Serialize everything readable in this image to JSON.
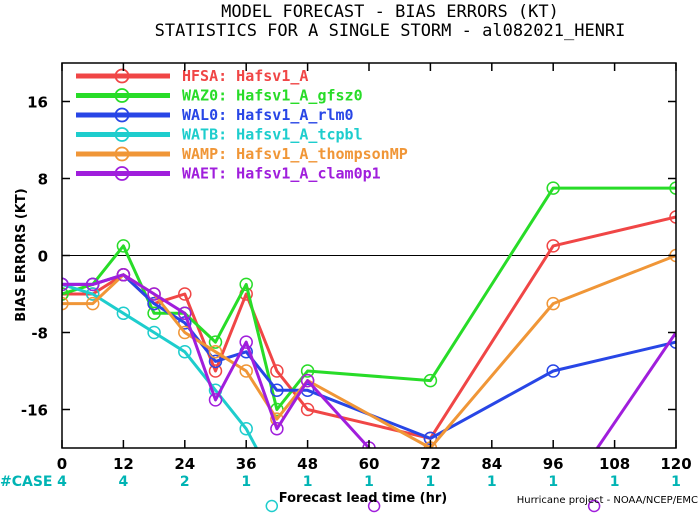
{
  "chart_data": {
    "type": "line",
    "title": "MODEL FORECAST - BIAS ERRORS (KT)",
    "subtitle": "STATISTICS FOR A SINGLE STORM - al082021_HENRI",
    "xlabel": "Forecast lead time (hr)",
    "ylabel": "BIAS ERRORS (KT)",
    "xlim": [
      0,
      120
    ],
    "ylim": [
      -20,
      20
    ],
    "x_ticks": [
      0,
      12,
      24,
      36,
      48,
      60,
      72,
      84,
      96,
      108,
      120
    ],
    "y_ticks": [
      16,
      8,
      0,
      -8,
      -16
    ],
    "grid": false,
    "legend_position": "top-left",
    "case_label": "#CASE",
    "cases": [
      {
        "x": 0,
        "label": "4"
      },
      {
        "x": 12,
        "label": "4"
      },
      {
        "x": 24,
        "label": "2"
      },
      {
        "x": 36,
        "label": "1"
      },
      {
        "x": 48,
        "label": "1"
      },
      {
        "x": 60,
        "label": "1"
      },
      {
        "x": 72,
        "label": "1"
      },
      {
        "x": 84,
        "label": "1"
      },
      {
        "x": 96,
        "label": "1"
      },
      {
        "x": 108,
        "label": "1"
      },
      {
        "x": 120,
        "label": "1"
      }
    ],
    "credit": "Hurricane project - NOAA/NCEP/EMC",
    "series": [
      {
        "name": "HFSA: Hafsv1_A",
        "color": "#f04646",
        "points": [
          [
            0,
            -4
          ],
          [
            6,
            -4
          ],
          [
            12,
            -2
          ],
          [
            18,
            -5
          ],
          [
            24,
            -4
          ],
          [
            30,
            -12
          ],
          [
            36,
            -4
          ],
          [
            42,
            -12
          ],
          [
            48,
            -16
          ],
          [
            72,
            -19
          ],
          [
            96,
            1
          ],
          [
            120,
            4
          ]
        ]
      },
      {
        "name": "WAZ0: Hafsv1_A_gfsz0",
        "color": "#28dc28",
        "points": [
          [
            0,
            -4
          ],
          [
            6,
            -3
          ],
          [
            12,
            1
          ],
          [
            18,
            -6
          ],
          [
            24,
            -6
          ],
          [
            30,
            -9
          ],
          [
            36,
            -3
          ],
          [
            42,
            -16
          ],
          [
            48,
            -12
          ],
          [
            72,
            -13
          ],
          [
            96,
            7
          ],
          [
            120,
            7
          ]
        ]
      },
      {
        "name": "WAL0: Hafsv1_A_rlm0",
        "color": "#2846e6",
        "points": [
          [
            0,
            -3
          ],
          [
            6,
            -3
          ],
          [
            12,
            -2
          ],
          [
            18,
            -5
          ],
          [
            24,
            -7
          ],
          [
            30,
            -11
          ],
          [
            36,
            -10
          ],
          [
            42,
            -14
          ],
          [
            48,
            -14
          ],
          [
            72,
            -19
          ],
          [
            96,
            -12
          ],
          [
            120,
            -9
          ]
        ]
      },
      {
        "name": "WATB: Hafsv1_A_tcpbl",
        "color": "#1ecdcd",
        "points": [
          [
            0,
            -3
          ],
          [
            6,
            -4
          ],
          [
            12,
            -6
          ],
          [
            18,
            -8
          ],
          [
            24,
            -10
          ],
          [
            30,
            -14
          ],
          [
            36,
            -18
          ],
          [
            38.5,
            -20.5
          ]
        ]
      },
      {
        "name": "WAMP: Hafsv1_A_thompsonMP",
        "color": "#f09637",
        "points": [
          [
            0,
            -5
          ],
          [
            6,
            -5
          ],
          [
            12,
            -2
          ],
          [
            18,
            -4
          ],
          [
            24,
            -8
          ],
          [
            30,
            -10
          ],
          [
            36,
            -12
          ],
          [
            42,
            -17
          ],
          [
            48,
            -13
          ],
          [
            72,
            -20
          ],
          [
            96,
            -5
          ],
          [
            120,
            0
          ]
        ]
      },
      {
        "name": "WAET: Hafsv1_A_clam0p1",
        "color": "#a01edc",
        "points": [
          [
            0,
            -3
          ],
          [
            6,
            -3
          ],
          [
            12,
            -2
          ],
          [
            18,
            -4
          ],
          [
            24,
            -6
          ],
          [
            30,
            -15
          ],
          [
            36,
            -9
          ],
          [
            42,
            -18
          ],
          [
            48,
            -13
          ],
          [
            60,
            -20
          ],
          [
            61,
            -20.5
          ]
        ],
        "extra_segments": [
          [
            [
              104,
              -20.5
            ],
            [
              120,
              -8
            ]
          ]
        ]
      }
    ]
  }
}
